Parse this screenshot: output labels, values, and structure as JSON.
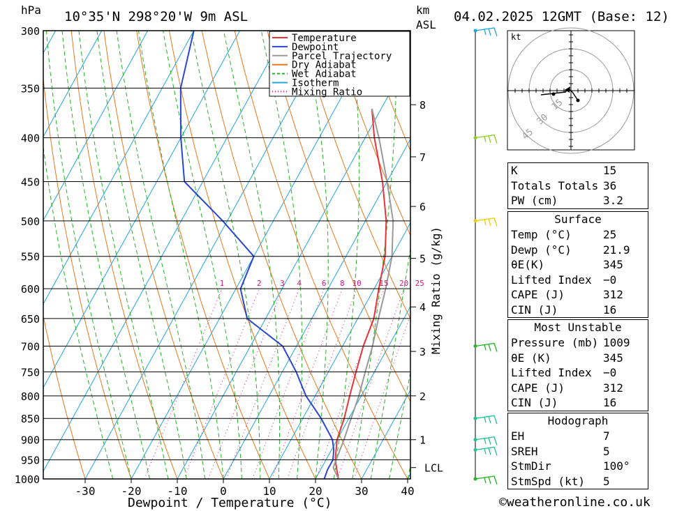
{
  "header": {
    "hpa_unit": "hPa",
    "location": "10°35'N 298°20'W 9m ASL",
    "km_unit": "km",
    "asl_unit": "ASL",
    "datetime": "04.02.2025 12GMT (Base: 12)"
  },
  "chart_data": {
    "type": "line",
    "title": "",
    "xlabel": "Dewpoint / Temperature (°C)",
    "ylabel": "hPa",
    "mixing_ratio_axis_label": "Mixing Ratio (g/kg)",
    "x_ticks": [
      -30,
      -20,
      -10,
      0,
      10,
      20,
      30,
      40
    ],
    "y_ticks": [
      300,
      350,
      400,
      450,
      500,
      550,
      600,
      650,
      700,
      750,
      800,
      850,
      900,
      950,
      1000
    ],
    "xlim": [
      -39,
      41
    ],
    "ylim": [
      1000,
      300
    ],
    "y_scale": "log",
    "km_ticks": [
      {
        "km": "1",
        "p": 900
      },
      {
        "km": "2",
        "p": 800
      },
      {
        "km": "3",
        "p": 710
      },
      {
        "km": "4",
        "p": 630
      },
      {
        "km": "5",
        "p": 553
      },
      {
        "km": "6",
        "p": 481
      },
      {
        "km": "7",
        "p": 421
      },
      {
        "km": "8",
        "p": 366
      }
    ],
    "lcl_label": "LCL",
    "lcl_pressure": 970,
    "mixing_ratio_labels": [
      "1",
      "2",
      "3",
      "4",
      "6",
      "8",
      "10",
      "15",
      "20",
      "25"
    ],
    "mixing_ratio_values": [
      1,
      2,
      3,
      4,
      6,
      8,
      10,
      15,
      20,
      25
    ],
    "legend": {
      "position": "top-right",
      "entries": [
        {
          "name": "Temperature",
          "color": "#e8333a",
          "style": "solid"
        },
        {
          "name": "Dewpoint",
          "color": "#2a46d4",
          "style": "solid"
        },
        {
          "name": "Parcel Trajectory",
          "color": "#999999",
          "style": "solid"
        },
        {
          "name": "Dry Adiabat",
          "color": "#e8781e",
          "style": "solid"
        },
        {
          "name": "Wet Adiabat",
          "color": "#22b422",
          "style": "dashed"
        },
        {
          "name": "Isotherm",
          "color": "#20a4e0",
          "style": "solid"
        },
        {
          "name": "Mixing Ratio",
          "color": "#d0187c",
          "style": "dotted"
        }
      ]
    },
    "series": [
      {
        "name": "Temperature",
        "color": "#e8333a",
        "points": [
          [
            1000,
            25
          ],
          [
            975,
            23.5
          ],
          [
            950,
            22
          ],
          [
            925,
            21
          ],
          [
            900,
            20
          ],
          [
            850,
            19
          ],
          [
            800,
            17.5
          ],
          [
            750,
            16
          ],
          [
            700,
            14.5
          ],
          [
            650,
            13.5
          ],
          [
            600,
            11
          ],
          [
            550,
            8.5
          ],
          [
            500,
            4.5
          ],
          [
            450,
            -1
          ],
          [
            400,
            -8
          ],
          [
            370,
            -12
          ]
        ]
      },
      {
        "name": "Dewpoint",
        "color": "#2a46d4",
        "points": [
          [
            1000,
            21.9
          ],
          [
            975,
            21.5
          ],
          [
            950,
            21.5
          ],
          [
            925,
            20.5
          ],
          [
            900,
            19
          ],
          [
            850,
            14
          ],
          [
            800,
            8
          ],
          [
            750,
            3
          ],
          [
            700,
            -3
          ],
          [
            650,
            -14
          ],
          [
            600,
            -19
          ],
          [
            550,
            -20
          ],
          [
            500,
            -31
          ],
          [
            450,
            -44
          ],
          [
            400,
            -50
          ],
          [
            350,
            -56
          ],
          [
            300,
            -60
          ]
        ]
      },
      {
        "name": "Parcel Trajectory",
        "color": "#999999",
        "points": [
          [
            1000,
            25
          ],
          [
            970,
            22.5
          ],
          [
            900,
            21.5
          ],
          [
            850,
            20.5
          ],
          [
            800,
            19.5
          ],
          [
            750,
            18
          ],
          [
            700,
            16.5
          ],
          [
            650,
            14.5
          ],
          [
            600,
            12.5
          ],
          [
            550,
            10
          ],
          [
            500,
            6
          ],
          [
            450,
            0
          ],
          [
            400,
            -7
          ],
          [
            370,
            -12
          ]
        ]
      },
      {
        "name": "Temperature (upper)",
        "color": "#e8333a",
        "points": [
          [
            330,
            -30
          ],
          [
            300,
            -38
          ]
        ]
      }
    ]
  },
  "hodograph": {
    "unit": "kt",
    "ring_labels": [
      "15",
      "30",
      "45"
    ]
  },
  "wind_profile": {
    "levels_hpa": [
      300,
      400,
      500,
      700,
      850,
      900,
      925,
      1000
    ]
  },
  "indices": {
    "general": [
      {
        "label": "K",
        "value": "15"
      },
      {
        "label": "Totals Totals",
        "value": "36"
      },
      {
        "label": "PW (cm)",
        "value": "3.2"
      }
    ],
    "surface_title": "Surface",
    "surface": [
      {
        "label": "Temp (°C)",
        "value": "25"
      },
      {
        "label": "Dewp (°C)",
        "value": "21.9"
      },
      {
        "label": "θE(K)",
        "value": "345"
      },
      {
        "label": "Lifted Index",
        "value": "−0"
      },
      {
        "label": "CAPE (J)",
        "value": "312"
      },
      {
        "label": "CIN (J)",
        "value": "16"
      }
    ],
    "mu_title": "Most Unstable",
    "mu": [
      {
        "label": "Pressure (mb)",
        "value": "1009"
      },
      {
        "label": "θE (K)",
        "value": "345"
      },
      {
        "label": "Lifted Index",
        "value": "−0"
      },
      {
        "label": "CAPE (J)",
        "value": "312"
      },
      {
        "label": "CIN (J)",
        "value": "16"
      }
    ],
    "hodo_title": "Hodograph",
    "hodo": [
      {
        "label": "EH",
        "value": "7"
      },
      {
        "label": "SREH",
        "value": "5"
      },
      {
        "label": "StmDir",
        "value": "100°"
      },
      {
        "label": "StmSpd (kt)",
        "value": "5"
      }
    ]
  },
  "footer": {
    "copyright": "©weatheronline.co.uk"
  }
}
